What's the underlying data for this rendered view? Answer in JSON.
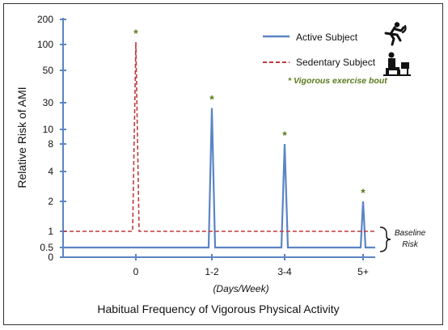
{
  "chart_data": {
    "type": "line",
    "xlabel": "Habitual Frequency of Vigorous Physical Activity",
    "xlabel_units": "(Days/Week)",
    "ylabel": "Relative Risk of AMI",
    "categories": [
      "0",
      "1-2",
      "3-4",
      "5+"
    ],
    "y_ticks": [
      "200",
      "100",
      "50",
      "30",
      "10",
      "8",
      "4",
      "2",
      "1",
      "0.5",
      "0"
    ],
    "y_scale": "log",
    "series": [
      {
        "name": "Active Subject",
        "style": "solid",
        "color": "#5b84c4",
        "baseline": 0.5,
        "peaks": [
          null,
          24,
          8,
          2
        ]
      },
      {
        "name": "Sedentary Subject",
        "style": "dashed",
        "color": "#c0393b",
        "baseline": 1,
        "peaks": [
          107,
          null,
          null,
          null
        ]
      }
    ],
    "peak_marker": "*",
    "marker_color": "#5a7a1e",
    "legend_note": "* Vigorous exercise bout",
    "baseline_label": [
      "Baseline",
      "Risk"
    ],
    "legend": "top-right",
    "grid": false,
    "icons": [
      "runner-icon",
      "desk-worker-icon"
    ]
  }
}
